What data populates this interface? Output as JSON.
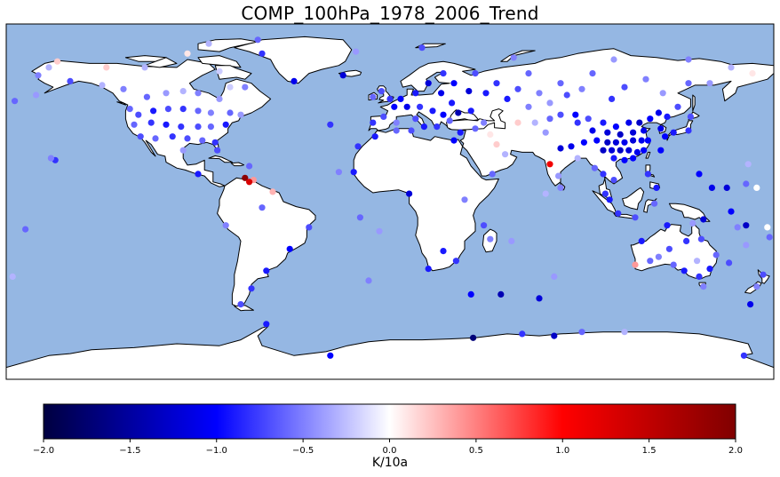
{
  "title": "COMP_100hPa_1978_2006_Trend",
  "colorbar": {
    "label": "K/10a",
    "ticks": [
      -2.0,
      -1.5,
      -1.0,
      -0.5,
      0.0,
      0.5,
      1.0,
      1.5,
      2.0
    ],
    "tick_labels": [
      "−2.0",
      "−1.5",
      "−1.0",
      "−0.5",
      "0.0",
      "0.5",
      "1.0",
      "1.5",
      "2.0"
    ],
    "range": [
      -2.0,
      2.0
    ],
    "colormap": "seismic",
    "colors": [
      "#000040",
      "#0000ff",
      "#ffffff",
      "#ff0000",
      "#800000"
    ]
  },
  "map_style": {
    "ocean_color": "#95b7e3",
    "land_color": "#ffffff",
    "coast_color": "#000000"
  },
  "stations": [
    {
      "lon": -150,
      "lat": 61,
      "v": -0.7
    },
    {
      "lon": -135,
      "lat": 59,
      "v": -0.3
    },
    {
      "lon": -125,
      "lat": 57,
      "v": -0.5
    },
    {
      "lon": -114,
      "lat": 53,
      "v": -0.6
    },
    {
      "lon": -105,
      "lat": 55,
      "v": -0.4
    },
    {
      "lon": -97,
      "lat": 56,
      "v": -0.3
    },
    {
      "lon": -90,
      "lat": 55,
      "v": -0.5
    },
    {
      "lon": -80,
      "lat": 52,
      "v": -0.4
    },
    {
      "lon": -75,
      "lat": 58,
      "v": -0.2
    },
    {
      "lon": -68,
      "lat": 58,
      "v": -0.5
    },
    {
      "lon": -122,
      "lat": 47,
      "v": -0.6
    },
    {
      "lon": -118,
      "lat": 44,
      "v": -0.7
    },
    {
      "lon": -111,
      "lat": 46,
      "v": -0.9
    },
    {
      "lon": -104,
      "lat": 47,
      "v": -0.7
    },
    {
      "lon": -97,
      "lat": 47,
      "v": -0.8
    },
    {
      "lon": -90,
      "lat": 46,
      "v": -0.6
    },
    {
      "lon": -84,
      "lat": 45,
      "v": -0.5
    },
    {
      "lon": -75,
      "lat": 45,
      "v": -0.6
    },
    {
      "lon": -70,
      "lat": 44,
      "v": -0.4
    },
    {
      "lon": -120,
      "lat": 39,
      "v": -0.6
    },
    {
      "lon": -112,
      "lat": 40,
      "v": -0.8
    },
    {
      "lon": -105,
      "lat": 39,
      "v": -0.9
    },
    {
      "lon": -98,
      "lat": 38,
      "v": -0.8
    },
    {
      "lon": -90,
      "lat": 38,
      "v": -0.7
    },
    {
      "lon": -84,
      "lat": 38,
      "v": -0.6
    },
    {
      "lon": -77,
      "lat": 39,
      "v": -0.9
    },
    {
      "lon": -117,
      "lat": 33,
      "v": -0.7
    },
    {
      "lon": -110,
      "lat": 32,
      "v": -0.6
    },
    {
      "lon": -102,
      "lat": 33,
      "v": -0.8
    },
    {
      "lon": -95,
      "lat": 32,
      "v": -0.7
    },
    {
      "lon": -88,
      "lat": 31,
      "v": -0.6
    },
    {
      "lon": -82,
      "lat": 30,
      "v": -0.8
    },
    {
      "lon": -97,
      "lat": 26,
      "v": -0.4
    },
    {
      "lon": -81,
      "lat": 26,
      "v": -0.7
    },
    {
      "lon": -66,
      "lat": 18,
      "v": -0.6
    },
    {
      "lon": -90,
      "lat": 14,
      "v": -0.9
    },
    {
      "lon": -68,
      "lat": 12,
      "v": 1.9
    },
    {
      "lon": -64,
      "lat": 11,
      "v": 0.4
    },
    {
      "lon": -66,
      "lat": 10,
      "v": 1.3
    },
    {
      "lon": -157,
      "lat": 21,
      "v": -0.8
    },
    {
      "lon": -159,
      "lat": 22,
      "v": -0.5
    },
    {
      "lon": -176,
      "lat": 51,
      "v": -0.6
    },
    {
      "lon": -166,
      "lat": 54,
      "v": -0.4
    },
    {
      "lon": -171,
      "lat": -14,
      "v": -0.6
    },
    {
      "lon": -177,
      "lat": -38,
      "v": -0.3
    },
    {
      "lon": -60,
      "lat": 75,
      "v": -0.8
    },
    {
      "lon": -45,
      "lat": 61,
      "v": -1.1
    },
    {
      "lon": -22,
      "lat": 64,
      "v": -1.2
    },
    {
      "lon": -28,
      "lat": 39,
      "v": -0.8
    },
    {
      "lon": -17,
      "lat": 15,
      "v": -0.9
    },
    {
      "lon": -55,
      "lat": 5,
      "v": 0.3
    },
    {
      "lon": -38,
      "lat": -13,
      "v": -0.7
    },
    {
      "lon": -47,
      "lat": -24,
      "v": -1.0
    },
    {
      "lon": -58,
      "lat": -35,
      "v": -0.9
    },
    {
      "lon": -65,
      "lat": -44,
      "v": -0.8
    },
    {
      "lon": -70,
      "lat": -52,
      "v": -0.7
    },
    {
      "lon": -77,
      "lat": -12,
      "v": -0.5
    },
    {
      "lon": -60,
      "lat": -3,
      "v": -0.6
    },
    {
      "lon": 9,
      "lat": 4,
      "v": -1.2
    },
    {
      "lon": 31,
      "lat": -30,
      "v": -0.8
    },
    {
      "lon": 18,
      "lat": -34,
      "v": -0.9
    },
    {
      "lon": 25,
      "lat": -25,
      "v": -0.9
    },
    {
      "lon": 57,
      "lat": -20,
      "v": -0.4
    },
    {
      "lon": 47,
      "lat": -19,
      "v": -0.5
    },
    {
      "lon": 44,
      "lat": -12,
      "v": -0.7
    },
    {
      "lon": 35,
      "lat": 1,
      "v": -0.5
    },
    {
      "lon": 48,
      "lat": 14,
      "v": -0.6
    },
    {
      "lon": 54,
      "lat": 24,
      "v": -0.3
    },
    {
      "lon": 50,
      "lat": 29,
      "v": 0.2
    },
    {
      "lon": 47,
      "lat": 34,
      "v": 0.1
    },
    {
      "lon": 40,
      "lat": 37,
      "v": -0.6
    },
    {
      "lon": 38,
      "lat": 46,
      "v": -0.9
    },
    {
      "lon": 32,
      "lat": 45,
      "v": -1.4
    },
    {
      "lon": 29,
      "lat": 50,
      "v": -0.9
    },
    {
      "lon": 24,
      "lat": 55,
      "v": -1.1
    },
    {
      "lon": 18,
      "lat": 60,
      "v": -1.2
    },
    {
      "lon": 12,
      "lat": 55,
      "v": -0.9
    },
    {
      "lon": 5,
      "lat": 52,
      "v": -1.0
    },
    {
      "lon": 0,
      "lat": 52,
      "v": -0.8
    },
    {
      "lon": -4,
      "lat": 56,
      "v": -0.7
    },
    {
      "lon": -8,
      "lat": 53,
      "v": -0.6
    },
    {
      "lon": 2,
      "lat": 48,
      "v": -1.0
    },
    {
      "lon": 8,
      "lat": 48,
      "v": -1.1
    },
    {
      "lon": 14,
      "lat": 48,
      "v": -0.8
    },
    {
      "lon": 20,
      "lat": 46,
      "v": -0.9
    },
    {
      "lon": 25,
      "lat": 44,
      "v": -1.0
    },
    {
      "lon": -3,
      "lat": 43,
      "v": -0.7
    },
    {
      "lon": -8,
      "lat": 40,
      "v": -0.8
    },
    {
      "lon": 3,
      "lat": 40,
      "v": -0.5
    },
    {
      "lon": 12,
      "lat": 42,
      "v": -0.7
    },
    {
      "lon": 16,
      "lat": 38,
      "v": -0.9
    },
    {
      "lon": 22,
      "lat": 38,
      "v": -0.8
    },
    {
      "lon": 28,
      "lat": 41,
      "v": -0.6
    },
    {
      "lon": 33,
      "lat": 35,
      "v": -0.9
    },
    {
      "lon": 30,
      "lat": 31,
      "v": -1.0
    },
    {
      "lon": 10,
      "lat": 36,
      "v": -0.7
    },
    {
      "lon": 3,
      "lat": 36,
      "v": -0.6
    },
    {
      "lon": -7,
      "lat": 33,
      "v": -0.9
    },
    {
      "lon": 44,
      "lat": 40,
      "v": -0.5
    },
    {
      "lon": 25,
      "lat": 65,
      "v": -0.8
    },
    {
      "lon": 30,
      "lat": 60,
      "v": -1.0
    },
    {
      "lon": 37,
      "lat": 56,
      "v": -1.2
    },
    {
      "lon": 45,
      "lat": 55,
      "v": -0.9
    },
    {
      "lon": 40,
      "lat": 65,
      "v": -0.7
    },
    {
      "lon": 50,
      "lat": 60,
      "v": -0.8
    },
    {
      "lon": 55,
      "lat": 52,
      "v": -0.9
    },
    {
      "lon": 60,
      "lat": 57,
      "v": -0.7
    },
    {
      "lon": 65,
      "lat": 65,
      "v": -0.6
    },
    {
      "lon": 70,
      "lat": 55,
      "v": -0.5
    },
    {
      "lon": 75,
      "lat": 50,
      "v": -0.4
    },
    {
      "lon": 80,
      "lat": 60,
      "v": -0.6
    },
    {
      "lon": 83,
      "lat": 54,
      "v": -0.7
    },
    {
      "lon": 90,
      "lat": 57,
      "v": -0.5
    },
    {
      "lon": 95,
      "lat": 65,
      "v": -0.6
    },
    {
      "lon": 104,
      "lat": 52,
      "v": -0.8
    },
    {
      "lon": 110,
      "lat": 58,
      "v": -0.7
    },
    {
      "lon": 120,
      "lat": 62,
      "v": -0.5
    },
    {
      "lon": 128,
      "lat": 55,
      "v": -0.4
    },
    {
      "lon": 135,
      "lat": 48,
      "v": -0.7
    },
    {
      "lon": 140,
      "lat": 60,
      "v": -0.6
    },
    {
      "lon": 150,
      "lat": 60,
      "v": -0.4
    },
    {
      "lon": 160,
      "lat": 68,
      "v": -0.3
    },
    {
      "lon": 170,
      "lat": 65,
      "v": 0.1
    },
    {
      "lon": 68,
      "lat": 40,
      "v": -0.3
    },
    {
      "lon": 60,
      "lat": 40,
      "v": 0.2
    },
    {
      "lon": 75,
      "lat": 42,
      "v": -0.6
    },
    {
      "lon": 65,
      "lat": 48,
      "v": -0.5
    },
    {
      "lon": 73,
      "lat": 35,
      "v": -0.4
    },
    {
      "lon": 80,
      "lat": 44,
      "v": -0.7
    },
    {
      "lon": 87,
      "lat": 44,
      "v": -1.0
    },
    {
      "lon": 88,
      "lat": 40,
      "v": -0.8
    },
    {
      "lon": 93,
      "lat": 42,
      "v": -0.7
    },
    {
      "lon": 100,
      "lat": 40,
      "v": -0.9
    },
    {
      "lon": 106,
      "lat": 38,
      "v": -1.0
    },
    {
      "lon": 112,
      "lat": 40,
      "v": -1.1
    },
    {
      "lon": 117,
      "lat": 40,
      "v": -1.3
    },
    {
      "lon": 122,
      "lat": 42,
      "v": -1.0
    },
    {
      "lon": 126,
      "lat": 45,
      "v": -1.1
    },
    {
      "lon": 130,
      "lat": 43,
      "v": -0.9
    },
    {
      "lon": 95,
      "lat": 36,
      "v": -1.1
    },
    {
      "lon": 102,
      "lat": 35,
      "v": -1.2
    },
    {
      "lon": 108,
      "lat": 34,
      "v": -1.3
    },
    {
      "lon": 114,
      "lat": 35,
      "v": -1.2
    },
    {
      "lon": 119,
      "lat": 36,
      "v": -1.1
    },
    {
      "lon": 97,
      "lat": 31,
      "v": -1.0
    },
    {
      "lon": 102,
      "lat": 30,
      "v": -1.3
    },
    {
      "lon": 106,
      "lat": 30,
      "v": -1.2
    },
    {
      "lon": 110,
      "lat": 30,
      "v": -1.1
    },
    {
      "lon": 114,
      "lat": 31,
      "v": -1.2
    },
    {
      "lon": 118,
      "lat": 31,
      "v": -1.1
    },
    {
      "lon": 121,
      "lat": 31,
      "v": -1.0
    },
    {
      "lon": 100,
      "lat": 26,
      "v": -1.3
    },
    {
      "lon": 104,
      "lat": 26,
      "v": -1.2
    },
    {
      "lon": 108,
      "lat": 26,
      "v": -1.3
    },
    {
      "lon": 112,
      "lat": 26,
      "v": -1.2
    },
    {
      "lon": 116,
      "lat": 25,
      "v": -1.1
    },
    {
      "lon": 119,
      "lat": 26,
      "v": -1.0
    },
    {
      "lon": 110,
      "lat": 21,
      "v": -1.0
    },
    {
      "lon": 114,
      "lat": 22,
      "v": -1.0
    },
    {
      "lon": 105,
      "lat": 22,
      "v": -0.9
    },
    {
      "lon": 91,
      "lat": 30,
      "v": -1.0
    },
    {
      "lon": 85,
      "lat": 28,
      "v": -1.1
    },
    {
      "lon": 80,
      "lat": 27,
      "v": -1.2
    },
    {
      "lon": 75,
      "lat": 19,
      "v": 1.1
    },
    {
      "lon": 88,
      "lat": 22,
      "v": -0.3
    },
    {
      "lon": 79,
      "lat": 13,
      "v": -0.4
    },
    {
      "lon": 80,
      "lat": 7,
      "v": -0.5
    },
    {
      "lon": 73,
      "lat": 4,
      "v": -0.3
    },
    {
      "lon": 96,
      "lat": 17,
      "v": -0.6
    },
    {
      "lon": 100,
      "lat": 14,
      "v": -0.8
    },
    {
      "lon": 105,
      "lat": 11,
      "v": -0.7
    },
    {
      "lon": 101,
      "lat": 4,
      "v": -0.8
    },
    {
      "lon": 103,
      "lat": 1,
      "v": -0.9
    },
    {
      "lon": 107,
      "lat": -6,
      "v": -0.8
    },
    {
      "lon": 115,
      "lat": -8,
      "v": -0.7
    },
    {
      "lon": 121,
      "lat": 14,
      "v": -0.8
    },
    {
      "lon": 125,
      "lat": 7,
      "v": -0.9
    },
    {
      "lon": 124,
      "lat": -1,
      "v": -0.6
    },
    {
      "lon": 127,
      "lat": 26,
      "v": -1.0
    },
    {
      "lon": 129,
      "lat": 33,
      "v": -1.0
    },
    {
      "lon": 127,
      "lat": 37,
      "v": -1.1
    },
    {
      "lon": 133,
      "lat": 35,
      "v": -0.9
    },
    {
      "lon": 140,
      "lat": 36,
      "v": -0.8
    },
    {
      "lon": 141,
      "lat": 43,
      "v": -0.7
    },
    {
      "lon": 145,
      "lat": 14,
      "v": -1.0
    },
    {
      "lon": 151,
      "lat": 7,
      "v": -1.1
    },
    {
      "lon": 158,
      "lat": 7,
      "v": -1.2
    },
    {
      "lon": 167,
      "lat": 9,
      "v": -0.6
    },
    {
      "lon": 172,
      "lat": 7,
      "v": 0.0
    },
    {
      "lon": 168,
      "lat": 19,
      "v": -0.3
    },
    {
      "lon": 147,
      "lat": -9,
      "v": -1.2
    },
    {
      "lon": 130,
      "lat": -12,
      "v": -0.9
    },
    {
      "lon": 142,
      "lat": -11,
      "v": -0.4
    },
    {
      "lon": 131,
      "lat": -24,
      "v": -0.7
    },
    {
      "lon": 139,
      "lat": -20,
      "v": -0.8
    },
    {
      "lon": 146,
      "lat": -19,
      "v": -0.7
    },
    {
      "lon": 118,
      "lat": -20,
      "v": -0.9
    },
    {
      "lon": 115,
      "lat": -32,
      "v": 0.4
    },
    {
      "lon": 122,
      "lat": -30,
      "v": -0.6
    },
    {
      "lon": 126,
      "lat": -28,
      "v": -0.5
    },
    {
      "lon": 133,
      "lat": -32,
      "v": -0.6
    },
    {
      "lon": 138,
      "lat": -35,
      "v": -0.9
    },
    {
      "lon": 144,
      "lat": -30,
      "v": -0.3
    },
    {
      "lon": 145,
      "lat": -38,
      "v": -0.8
    },
    {
      "lon": 150,
      "lat": -34,
      "v": -0.9
    },
    {
      "lon": 153,
      "lat": -27,
      "v": -0.6
    },
    {
      "lon": 147,
      "lat": -43,
      "v": -0.5
    },
    {
      "lon": 159,
      "lat": -31,
      "v": -0.7
    },
    {
      "lon": 167,
      "lat": -22,
      "v": -0.4
    },
    {
      "lon": 178,
      "lat": -18,
      "v": -0.6
    },
    {
      "lon": 175,
      "lat": -37,
      "v": -0.7
    },
    {
      "lon": 172,
      "lat": -43,
      "v": -0.5
    },
    {
      "lon": 169,
      "lat": -52,
      "v": -1.1
    },
    {
      "lon": 163,
      "lat": -13,
      "v": -0.5
    },
    {
      "lon": 167,
      "lat": -12,
      "v": -1.3
    },
    {
      "lon": 177,
      "lat": -13,
      "v": 0.0
    },
    {
      "lon": 160,
      "lat": -5,
      "v": -1.0
    },
    {
      "lon": 70,
      "lat": -49,
      "v": -1.2
    },
    {
      "lon": 77,
      "lat": -38,
      "v": -0.4
    },
    {
      "lon": 52,
      "lat": -47,
      "v": -1.4
    },
    {
      "lon": 38,
      "lat": -47,
      "v": -1.0
    },
    {
      "lon": -10,
      "lat": -40,
      "v": -0.5
    },
    {
      "lon": -5,
      "lat": -15,
      "v": -0.4
    },
    {
      "lon": -14,
      "lat": -8,
      "v": -0.6
    },
    {
      "lon": -24,
      "lat": 15,
      "v": -0.5
    },
    {
      "lon": -15,
      "lat": 28,
      "v": -0.8
    },
    {
      "lon": 39,
      "lat": -69,
      "v": -1.7
    },
    {
      "lon": 62,
      "lat": -67,
      "v": -0.8
    },
    {
      "lon": 77,
      "lat": -68,
      "v": -1.3
    },
    {
      "lon": 90,
      "lat": -66,
      "v": -0.6
    },
    {
      "lon": 110,
      "lat": -66,
      "v": -0.3
    },
    {
      "lon": -58,
      "lat": -62,
      "v": -0.9
    },
    {
      "lon": -28,
      "lat": -78,
      "v": -1.0
    },
    {
      "lon": 166,
      "lat": -78,
      "v": -0.8
    },
    {
      "lon": 15,
      "lat": 78,
      "v": -0.7
    },
    {
      "lon": -16,
      "lat": 76,
      "v": -0.4
    },
    {
      "lon": 58,
      "lat": 73,
      "v": -0.5
    },
    {
      "lon": 105,
      "lat": 72,
      "v": -0.4
    },
    {
      "lon": -95,
      "lat": 75,
      "v": 0.1
    },
    {
      "lon": -80,
      "lat": 66,
      "v": -0.2
    },
    {
      "lon": -115,
      "lat": 68,
      "v": -0.3
    },
    {
      "lon": -133,
      "lat": 68,
      "v": 0.2
    },
    {
      "lon": -156,
      "lat": 71,
      "v": 0.2
    },
    {
      "lon": -165,
      "lat": 64,
      "v": -0.5
    },
    {
      "lon": -62,
      "lat": 82,
      "v": -0.6
    },
    {
      "lon": -85,
      "lat": 80,
      "v": -0.3
    },
    {
      "lon": 140,
      "lat": 72,
      "v": -0.5
    },
    {
      "lon": -160,
      "lat": 68,
      "v": -0.3
    }
  ]
}
